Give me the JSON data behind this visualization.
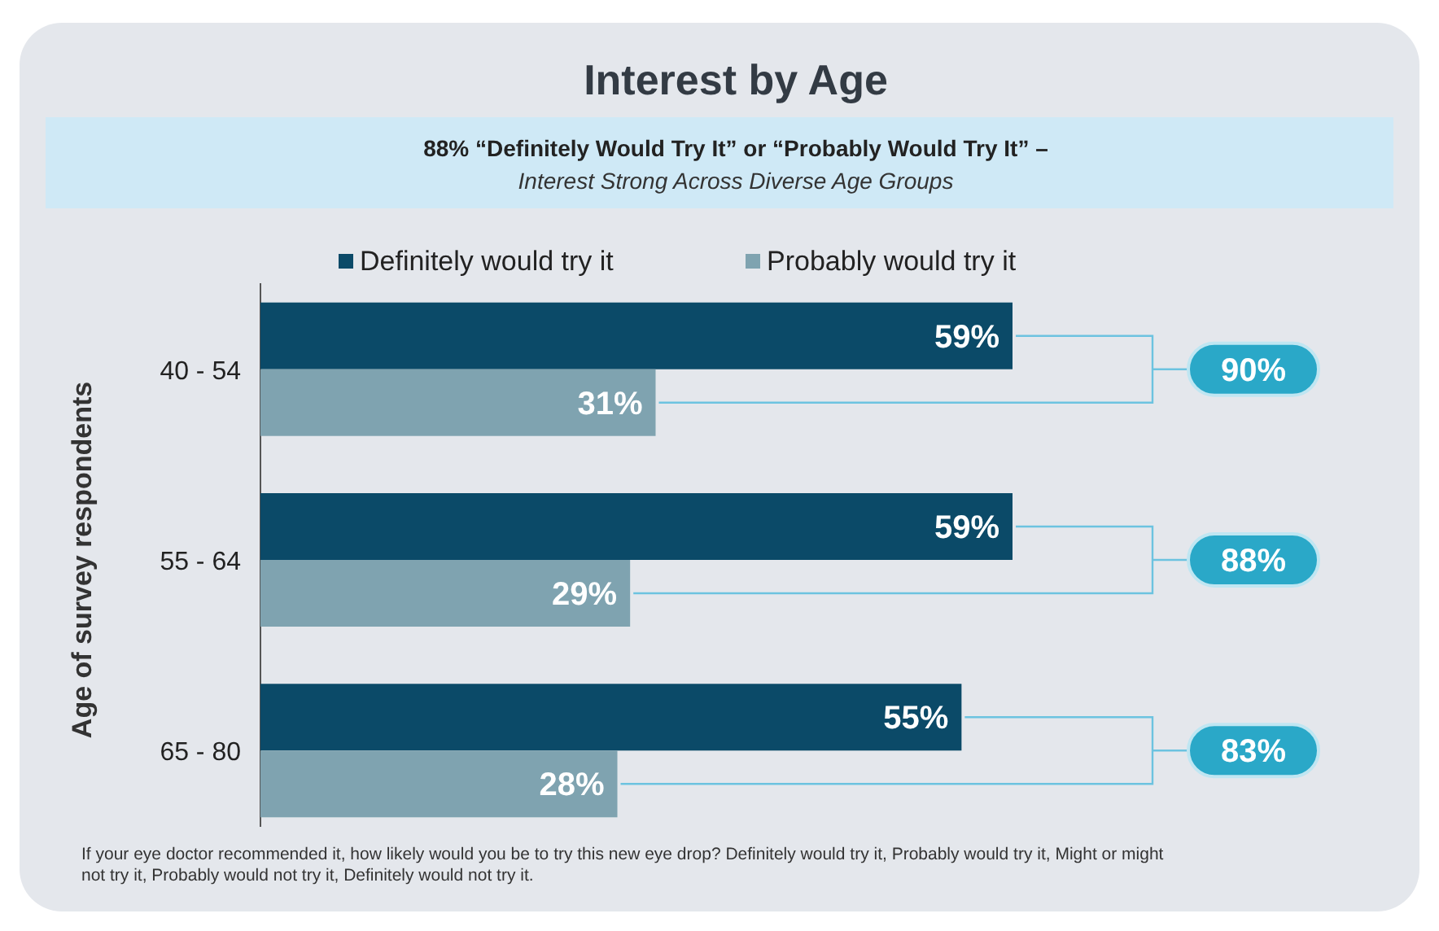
{
  "chart_data": {
    "type": "bar",
    "orientation": "horizontal",
    "title": "Interest by Age",
    "subtitle": "88% “Definitely Would Try It” or “Probably Would Try It” –",
    "ylabel": "Age of survey respondents",
    "categories": [
      "40 - 54",
      "55 - 64",
      "65 - 80"
    ],
    "series": [
      {
        "name": "Definitely would try it",
        "color": "#0b4a68",
        "values": [
          59,
          59,
          55
        ],
        "value_labels": [
          "59%",
          "59%",
          "55%"
        ]
      },
      {
        "name": "Probably would try it",
        "color": "#7fa3b0",
        "values": [
          31,
          29,
          28
        ],
        "value_labels": [
          "31%",
          "29%",
          "28%"
        ]
      }
    ],
    "legend": "top",
    "annotations": [
      "Interest Strong Across Diverse Age Groups",
      "90%",
      "88%",
      "83%",
      "If your eye doctor recommended it, how likely would you be to try this new eye drop? Definitely would try it, Probably would try it, Might or might not try it, Probably would not try it, Definitely would not try it."
    ]
  }
}
